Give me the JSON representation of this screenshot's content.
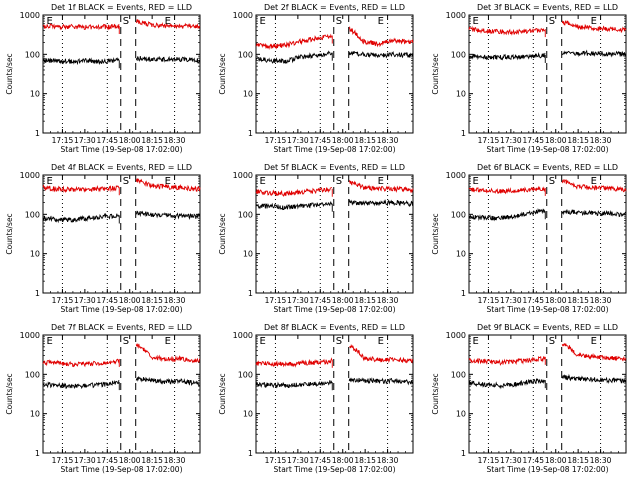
{
  "colors": {
    "events": "#000000",
    "lld": "#e00000",
    "axis": "#000000"
  },
  "chart_data": [
    {
      "type": "line",
      "title": "Det 1f BLACK = Events, RED = LLD",
      "xlabel": "Start Time (19-Sep-08 17:02:00)",
      "ylabel": "Counts/sec",
      "yscale": "log",
      "ylim": [
        1,
        1000
      ],
      "xlim_min": [
        0,
        105
      ],
      "xticks_min": [
        13,
        28,
        43,
        58,
        73,
        88
      ],
      "xtick_labels": [
        "17:15",
        "17:30",
        "17:45",
        "18:00",
        "18:15",
        "18:30"
      ],
      "yticks": [
        1,
        10,
        100,
        1000
      ],
      "ytick_labels": [
        "1",
        "10",
        "100",
        "1000"
      ],
      "dotted_lines_min": [
        13,
        43,
        88
      ],
      "dashed_lines_min": [
        52,
        62
      ],
      "markers": [
        {
          "label": "E",
          "min": 1
        },
        {
          "label": "S",
          "min": 52
        },
        {
          "label": "E",
          "min": 80
        }
      ],
      "series": [
        {
          "role": "events",
          "x": [
            0,
            10,
            20,
            30,
            40,
            50,
            62,
            72,
            82,
            92,
            102
          ],
          "y": [
            70,
            68,
            66,
            68,
            66,
            70,
            80,
            76,
            73,
            75,
            70
          ]
        },
        {
          "role": "lld",
          "x": [
            0,
            10,
            20,
            30,
            40,
            50,
            63,
            72,
            82,
            92,
            102
          ],
          "y": [
            520,
            510,
            500,
            490,
            500,
            510,
            700,
            560,
            540,
            520,
            500
          ]
        }
      ]
    },
    {
      "type": "line",
      "title": "Det 2f BLACK = Events, RED = LLD",
      "xlabel": "Start Time (19-Sep-08 17:02:00)",
      "ylabel": "Counts/sec",
      "yscale": "log",
      "ylim": [
        1,
        1000
      ],
      "xlim_min": [
        0,
        105
      ],
      "xticks_min": [
        13,
        28,
        43,
        58,
        73,
        88
      ],
      "xtick_labels": [
        "17:15",
        "17:30",
        "17:45",
        "18:00",
        "18:15",
        "18:30"
      ],
      "yticks": [
        1,
        10,
        100,
        1000
      ],
      "ytick_labels": [
        "1",
        "10",
        "100",
        "1000"
      ],
      "dotted_lines_min": [
        13,
        43,
        88
      ],
      "dashed_lines_min": [
        52,
        62
      ],
      "markers": [
        {
          "label": "E",
          "min": 1
        },
        {
          "label": "S",
          "min": 52
        },
        {
          "label": "E",
          "min": 80
        }
      ],
      "series": [
        {
          "role": "events",
          "x": [
            0,
            10,
            20,
            30,
            40,
            50,
            62,
            72,
            82,
            92,
            102
          ],
          "y": [
            75,
            70,
            66,
            85,
            95,
            110,
            110,
            100,
            92,
            100,
            95
          ]
        },
        {
          "role": "lld",
          "x": [
            0,
            10,
            20,
            30,
            40,
            50,
            63,
            72,
            82,
            92,
            102
          ],
          "y": [
            170,
            160,
            170,
            215,
            250,
            290,
            430,
            210,
            180,
            230,
            210
          ]
        }
      ]
    },
    {
      "type": "line",
      "title": "Det 3f BLACK = Events, RED = LLD",
      "xlabel": "Start Time (19-Sep-08 17:02:00)",
      "ylabel": "Counts/sec",
      "yscale": "log",
      "ylim": [
        1,
        1000
      ],
      "xlim_min": [
        0,
        105
      ],
      "xticks_min": [
        13,
        28,
        43,
        58,
        73,
        88
      ],
      "xtick_labels": [
        "17:15",
        "17:30",
        "17:45",
        "18:00",
        "18:15",
        "18:30"
      ],
      "yticks": [
        1,
        10,
        100,
        1000
      ],
      "ytick_labels": [
        "1",
        "10",
        "100",
        "1000"
      ],
      "dotted_lines_min": [
        13,
        43,
        88
      ],
      "dashed_lines_min": [
        52,
        62
      ],
      "markers": [
        {
          "label": "E",
          "min": 1
        },
        {
          "label": "S",
          "min": 52
        },
        {
          "label": "E",
          "min": 80
        }
      ],
      "series": [
        {
          "role": "events",
          "x": [
            0,
            10,
            20,
            30,
            40,
            50,
            62,
            72,
            82,
            92,
            102
          ],
          "y": [
            90,
            85,
            84,
            86,
            88,
            95,
            110,
            108,
            105,
            105,
            100
          ]
        },
        {
          "role": "lld",
          "x": [
            0,
            10,
            20,
            30,
            40,
            50,
            63,
            72,
            82,
            92,
            102
          ],
          "y": [
            430,
            400,
            380,
            370,
            380,
            420,
            660,
            500,
            470,
            440,
            420
          ]
        }
      ]
    },
    {
      "type": "line",
      "title": "Det 4f BLACK = Events, RED = LLD",
      "xlabel": "Start Time (19-Sep-08 17:02:00)",
      "ylabel": "Counts/sec",
      "yscale": "log",
      "ylim": [
        1,
        1000
      ],
      "xlim_min": [
        0,
        105
      ],
      "xticks_min": [
        13,
        28,
        43,
        58,
        73,
        88
      ],
      "xtick_labels": [
        "17:15",
        "17:30",
        "17:45",
        "18:00",
        "18:15",
        "18:30"
      ],
      "yticks": [
        1,
        10,
        100,
        1000
      ],
      "ytick_labels": [
        "1",
        "10",
        "100",
        "1000"
      ],
      "dotted_lines_min": [
        13,
        43,
        88
      ],
      "dashed_lines_min": [
        52,
        62
      ],
      "markers": [
        {
          "label": "E",
          "min": 1
        },
        {
          "label": "S",
          "min": 52
        },
        {
          "label": "E",
          "min": 80
        }
      ],
      "series": [
        {
          "role": "events",
          "x": [
            0,
            10,
            20,
            30,
            40,
            50,
            62,
            72,
            82,
            92,
            102
          ],
          "y": [
            80,
            75,
            72,
            80,
            88,
            92,
            110,
            98,
            94,
            92,
            88
          ]
        },
        {
          "role": "lld",
          "x": [
            0,
            10,
            20,
            30,
            40,
            50,
            63,
            72,
            82,
            92,
            102
          ],
          "y": [
            480,
            440,
            420,
            430,
            450,
            470,
            720,
            540,
            500,
            470,
            440
          ]
        }
      ]
    },
    {
      "type": "line",
      "title": "Det 5f BLACK = Events, RED = LLD",
      "xlabel": "Start Time (19-Sep-08 17:02:00)",
      "ylabel": "Counts/sec",
      "yscale": "log",
      "ylim": [
        1,
        1000
      ],
      "xlim_min": [
        0,
        105
      ],
      "xticks_min": [
        13,
        28,
        43,
        58,
        73,
        88
      ],
      "xtick_labels": [
        "17:15",
        "17:30",
        "17:45",
        "18:00",
        "18:15",
        "18:30"
      ],
      "yticks": [
        1,
        10,
        100,
        1000
      ],
      "ytick_labels": [
        "1",
        "10",
        "100",
        "1000"
      ],
      "dotted_lines_min": [
        13,
        43,
        88
      ],
      "dashed_lines_min": [
        52,
        62
      ],
      "markers": [
        {
          "label": "E",
          "min": 1
        },
        {
          "label": "S",
          "min": 52
        },
        {
          "label": "E",
          "min": 80
        }
      ],
      "series": [
        {
          "role": "events",
          "x": [
            0,
            10,
            20,
            30,
            40,
            50,
            62,
            72,
            82,
            92,
            102
          ],
          "y": [
            165,
            160,
            150,
            160,
            175,
            185,
            200,
            195,
            190,
            200,
            185
          ]
        },
        {
          "role": "lld",
          "x": [
            0,
            10,
            20,
            30,
            40,
            50,
            63,
            72,
            82,
            92,
            102
          ],
          "y": [
            380,
            350,
            330,
            370,
            400,
            430,
            650,
            480,
            450,
            440,
            420
          ]
        }
      ]
    },
    {
      "type": "line",
      "title": "Det 6f BLACK = Events, RED = LLD",
      "xlabel": "Start Time (19-Sep-08 17:02:00)",
      "ylabel": "Counts/sec",
      "yscale": "log",
      "ylim": [
        1,
        1000
      ],
      "xlim_min": [
        0,
        105
      ],
      "xticks_min": [
        13,
        28,
        43,
        58,
        73,
        88
      ],
      "xtick_labels": [
        "17:15",
        "17:30",
        "17:45",
        "18:00",
        "18:15",
        "18:30"
      ],
      "yticks": [
        1,
        10,
        100,
        1000
      ],
      "ytick_labels": [
        "1",
        "10",
        "100",
        "1000"
      ],
      "dotted_lines_min": [
        13,
        43,
        88
      ],
      "dashed_lines_min": [
        52,
        62
      ],
      "markers": [
        {
          "label": "E",
          "min": 1
        },
        {
          "label": "S",
          "min": 52
        },
        {
          "label": "E",
          "min": 80
        }
      ],
      "series": [
        {
          "role": "events",
          "x": [
            0,
            10,
            20,
            30,
            40,
            50,
            62,
            72,
            82,
            92,
            102
          ],
          "y": [
            88,
            82,
            80,
            85,
            110,
            120,
            120,
            112,
            108,
            106,
            100
          ]
        },
        {
          "role": "lld",
          "x": [
            0,
            10,
            20,
            30,
            40,
            50,
            63,
            72,
            82,
            92,
            102
          ],
          "y": [
            430,
            400,
            380,
            400,
            430,
            450,
            700,
            520,
            480,
            460,
            430
          ]
        }
      ]
    },
    {
      "type": "line",
      "title": "Det 7f BLACK = Events, RED = LLD",
      "xlabel": "Start Time (19-Sep-08 17:02:00)",
      "ylabel": "Counts/sec",
      "yscale": "log",
      "ylim": [
        1,
        1000
      ],
      "xlim_min": [
        0,
        105
      ],
      "xticks_min": [
        13,
        28,
        43,
        58,
        73,
        88
      ],
      "xtick_labels": [
        "17:15",
        "17:30",
        "17:45",
        "18:00",
        "18:15",
        "18:30"
      ],
      "yticks": [
        1,
        10,
        100,
        1000
      ],
      "ytick_labels": [
        "1",
        "10",
        "100",
        "1000"
      ],
      "dotted_lines_min": [
        13,
        43,
        88
      ],
      "dashed_lines_min": [
        52,
        62
      ],
      "markers": [
        {
          "label": "E",
          "min": 1
        },
        {
          "label": "S",
          "min": 52
        },
        {
          "label": "E",
          "min": 80
        }
      ],
      "series": [
        {
          "role": "events",
          "x": [
            0,
            10,
            20,
            30,
            40,
            50,
            62,
            72,
            82,
            92,
            102
          ],
          "y": [
            55,
            52,
            50,
            52,
            55,
            62,
            80,
            70,
            65,
            68,
            60
          ]
        },
        {
          "role": "lld",
          "x": [
            0,
            10,
            20,
            30,
            40,
            50,
            63,
            72,
            82,
            92,
            102
          ],
          "y": [
            200,
            190,
            180,
            185,
            195,
            220,
            560,
            280,
            240,
            250,
            220
          ]
        }
      ]
    },
    {
      "type": "line",
      "title": "Det 8f BLACK = Events, RED = LLD",
      "xlabel": "Start Time (19-Sep-08 17:02:00)",
      "ylabel": "Counts/sec",
      "yscale": "log",
      "ylim": [
        1,
        1000
      ],
      "xlim_min": [
        0,
        105
      ],
      "xticks_min": [
        13,
        28,
        43,
        58,
        73,
        88
      ],
      "xtick_labels": [
        "17:15",
        "17:30",
        "17:45",
        "18:00",
        "18:15",
        "18:30"
      ],
      "yticks": [
        1,
        10,
        100,
        1000
      ],
      "ytick_labels": [
        "1",
        "10",
        "100",
        "1000"
      ],
      "dotted_lines_min": [
        13,
        43,
        88
      ],
      "dashed_lines_min": [
        52,
        62
      ],
      "markers": [
        {
          "label": "E",
          "min": 1
        },
        {
          "label": "S",
          "min": 52
        },
        {
          "label": "E",
          "min": 80
        }
      ],
      "series": [
        {
          "role": "events",
          "x": [
            0,
            10,
            20,
            30,
            40,
            50,
            62,
            72,
            82,
            92,
            102
          ],
          "y": [
            55,
            53,
            52,
            55,
            58,
            62,
            75,
            70,
            67,
            68,
            65
          ]
        },
        {
          "role": "lld",
          "x": [
            0,
            10,
            20,
            30,
            40,
            50,
            63,
            72,
            82,
            92,
            102
          ],
          "y": [
            190,
            185,
            180,
            190,
            200,
            210,
            520,
            260,
            230,
            240,
            220
          ]
        }
      ]
    },
    {
      "type": "line",
      "title": "Det 9f BLACK = Events, RED = LLD",
      "xlabel": "Start Time (19-Sep-08 17:02:00)",
      "ylabel": "Counts/sec",
      "yscale": "log",
      "ylim": [
        1,
        1000
      ],
      "xlim_min": [
        0,
        105
      ],
      "xticks_min": [
        13,
        28,
        43,
        58,
        73,
        88
      ],
      "xtick_labels": [
        "17:15",
        "17:30",
        "17:45",
        "18:00",
        "18:15",
        "18:30"
      ],
      "yticks": [
        1,
        10,
        100,
        1000
      ],
      "ytick_labels": [
        "1",
        "10",
        "100",
        "1000"
      ],
      "dotted_lines_min": [
        13,
        43,
        88
      ],
      "dashed_lines_min": [
        52,
        62
      ],
      "markers": [
        {
          "label": "E",
          "min": 1
        },
        {
          "label": "S",
          "min": 52
        },
        {
          "label": "E",
          "min": 80
        }
      ],
      "series": [
        {
          "role": "events",
          "x": [
            0,
            10,
            20,
            30,
            40,
            50,
            62,
            72,
            82,
            92,
            102
          ],
          "y": [
            60,
            55,
            52,
            55,
            65,
            70,
            85,
            78,
            74,
            72,
            68
          ]
        },
        {
          "role": "lld",
          "x": [
            0,
            10,
            20,
            30,
            40,
            50,
            63,
            72,
            82,
            92,
            102
          ],
          "y": [
            230,
            210,
            200,
            210,
            230,
            250,
            620,
            320,
            280,
            270,
            250
          ]
        }
      ]
    }
  ]
}
